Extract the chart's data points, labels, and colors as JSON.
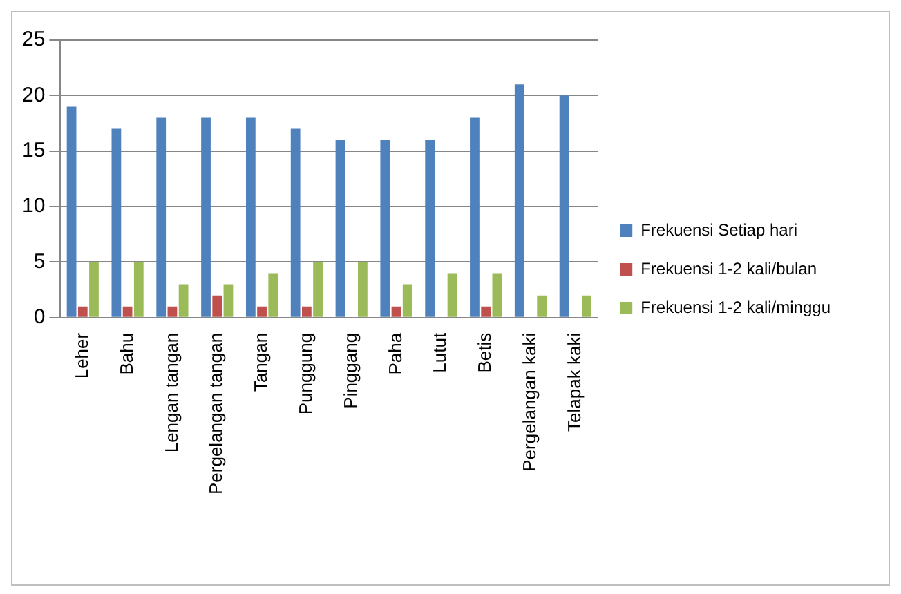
{
  "chart_data": {
    "type": "bar",
    "categories": [
      "Leher",
      "Bahu",
      "Lengan tangan",
      "Pergelangan tangan",
      "Tangan",
      "Punggung",
      "Pinggang",
      "Paha",
      "Lutut",
      "Betis",
      "Pergelangan kaki",
      "Telapak kaki"
    ],
    "series": [
      {
        "name": "Frekuensi Setiap hari",
        "color": "#4f81bd",
        "values": [
          19,
          17,
          18,
          18,
          18,
          17,
          16,
          16,
          16,
          18,
          21,
          20
        ]
      },
      {
        "name": "Frekuensi 1-2 kali/bulan",
        "color": "#c0504d",
        "values": [
          1,
          1,
          1,
          2,
          1,
          1,
          0,
          1,
          0,
          1,
          0,
          0
        ]
      },
      {
        "name": "Frekuensi 1-2 kali/minggu",
        "color": "#9bbb59",
        "values": [
          5,
          5,
          3,
          3,
          4,
          5,
          5,
          3,
          4,
          4,
          2,
          2
        ]
      }
    ],
    "ylim": [
      0,
      25
    ],
    "yticks": [
      0,
      5,
      10,
      15,
      20,
      25
    ],
    "grid": "y",
    "legend": "right"
  }
}
